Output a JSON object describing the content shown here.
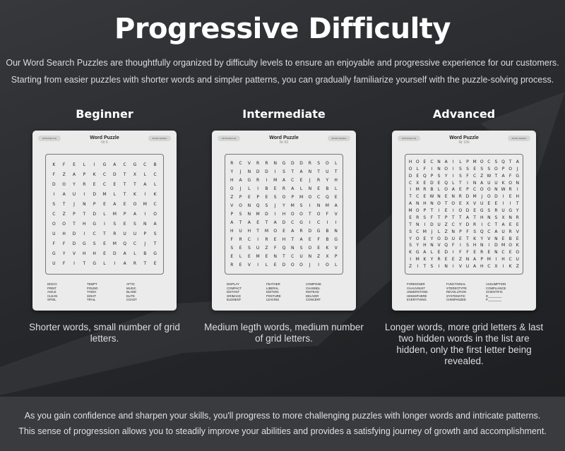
{
  "title": "Progressive Difficulty",
  "intro": [
    "Our Word Search Puzzles are thoughtfully organized by difficulty levels to ensure an enjoyable and progressive experience for our customers.",
    "Starting from easier puzzles with shorter words and simpler patterns, you can gradually familiarize yourself with the puzzle-solving process."
  ],
  "levels": [
    {
      "heading": "Beginner",
      "card_title": "Word Puzzle",
      "number": "Nr 6",
      "left_button": "All Puzzles List",
      "right_button": "Puzzle Solution",
      "grid": [
        "KFELIGACGCB",
        "FZAPKCDTXLC",
        "DOYRECETTAL",
        "IAUIDMLTKIK",
        "STJNPEAEOMC",
        "CZPTDLMPAIO",
        "OOTHGISESNA",
        "UHDICTRUUPS",
        "FFDGSEMQCJT",
        "GYVHHEDALBG",
        "UFITGLIARTE"
      ],
      "words": [
        [
          "DISCO",
          "PRINT",
          "AGILE",
          "CLEAN",
          "SPOIL"
        ],
        [
          "TEMPT",
          "POUND",
          "THIGH",
          "SIGHT",
          "TRAIL"
        ],
        [
          "ATTIC",
          "MUSIC",
          "BLADE",
          "ELITE",
          "COAST"
        ]
      ],
      "caption": "Shorter words, small number of grid letters."
    },
    {
      "heading": "Intermediate",
      "card_title": "Word Puzzle",
      "number": "Nr 60",
      "left_button": "All Puzzles List",
      "right_button": "Puzzle Solution",
      "grid": [
        "RCVRRNGDDRSOL",
        "YJNDDISTANTUT",
        "HAGRIMACEJRYH",
        "OJLIBERALNEBL",
        "ZPEPESOPMOCQE",
        "VONQSJYMSINMA",
        "PSNMDIHOOTOFV",
        "ATAETADCGICII",
        "HUHTMOEARDGBN",
        "FRCIREHTAEFBG",
        "SESUZFQNSOEKV",
        "ELEMENTCUNZXP",
        "REVILEDOOJIOL"
      ],
      "words": [
        [
          "DISPLAY",
          "COMPACT",
          "DISTANT",
          "GRIMACE",
          "ELEMENT"
        ],
        [
          "FEATHER",
          "LIBERAL",
          "EDITION",
          "POSTURE",
          "LEAVING"
        ],
        [
          "COMPOSE",
          "CHANNEL",
          "INSTEAD",
          "DELIVER",
          "CONCERT"
        ]
      ],
      "caption": "Medium legth words, medium number of grid letters."
    },
    {
      "heading": "Advanced",
      "card_title": "Word Puzzle",
      "number": "Nr 100",
      "left_button": "All Puzzles List",
      "right_button": "Puzzle Solution",
      "grid": [
        "HOECNAILPMOCSQTA",
        "OLFINOISSESSOPOJ",
        "DEQPSYISFCZWTAFG",
        "CXEDEQLTINAUUKON",
        "IMRBLOAEPCOONWRI",
        "TCEWNENRDMJODIEH",
        "ANHNOTOEXVUEEIIT",
        "MOPTIEIODEGSRUGY",
        "ERSFTPTTATHNSXNR",
        "TNIDUZCYDRICTAEE",
        "SCMJLZNPFSQCAURV",
        "YOEYODUETKYVNEBE",
        "SYHNVQFISHNIDMOK",
        "KGALEDIFFERENCEO",
        "IMKYREEZNAPMIHCU",
        "ZITSINIVUAHCXIKZ"
      ],
      "words": [
        [
          "FOREIGNER",
          "CHAUVINIST",
          "UNDERSTAND",
          "HEMISPHERE",
          "EVERYTHING"
        ],
        [
          "FUNCTIONAL",
          "STEREOTYPE",
          "REVOLUTION",
          "SYSTEMATIC",
          "CHIMPANZEE"
        ],
        [
          "ASSUMPTION",
          "COMPLIANCE",
          "SCIENTIFIC",
          "D________",
          "P________"
        ]
      ],
      "caption": "Longer words, more grid letters & last two hidden words in the list are hidden, only the first letter being revealed."
    }
  ],
  "footer": [
    "As you gain confidence and sharpen your skills, you'll progress to more challenging puzzles with longer words and intricate patterns.",
    "This sense of progression allows you to steadily improve your abilities and provides a satisfying journey of growth and accomplishment."
  ]
}
